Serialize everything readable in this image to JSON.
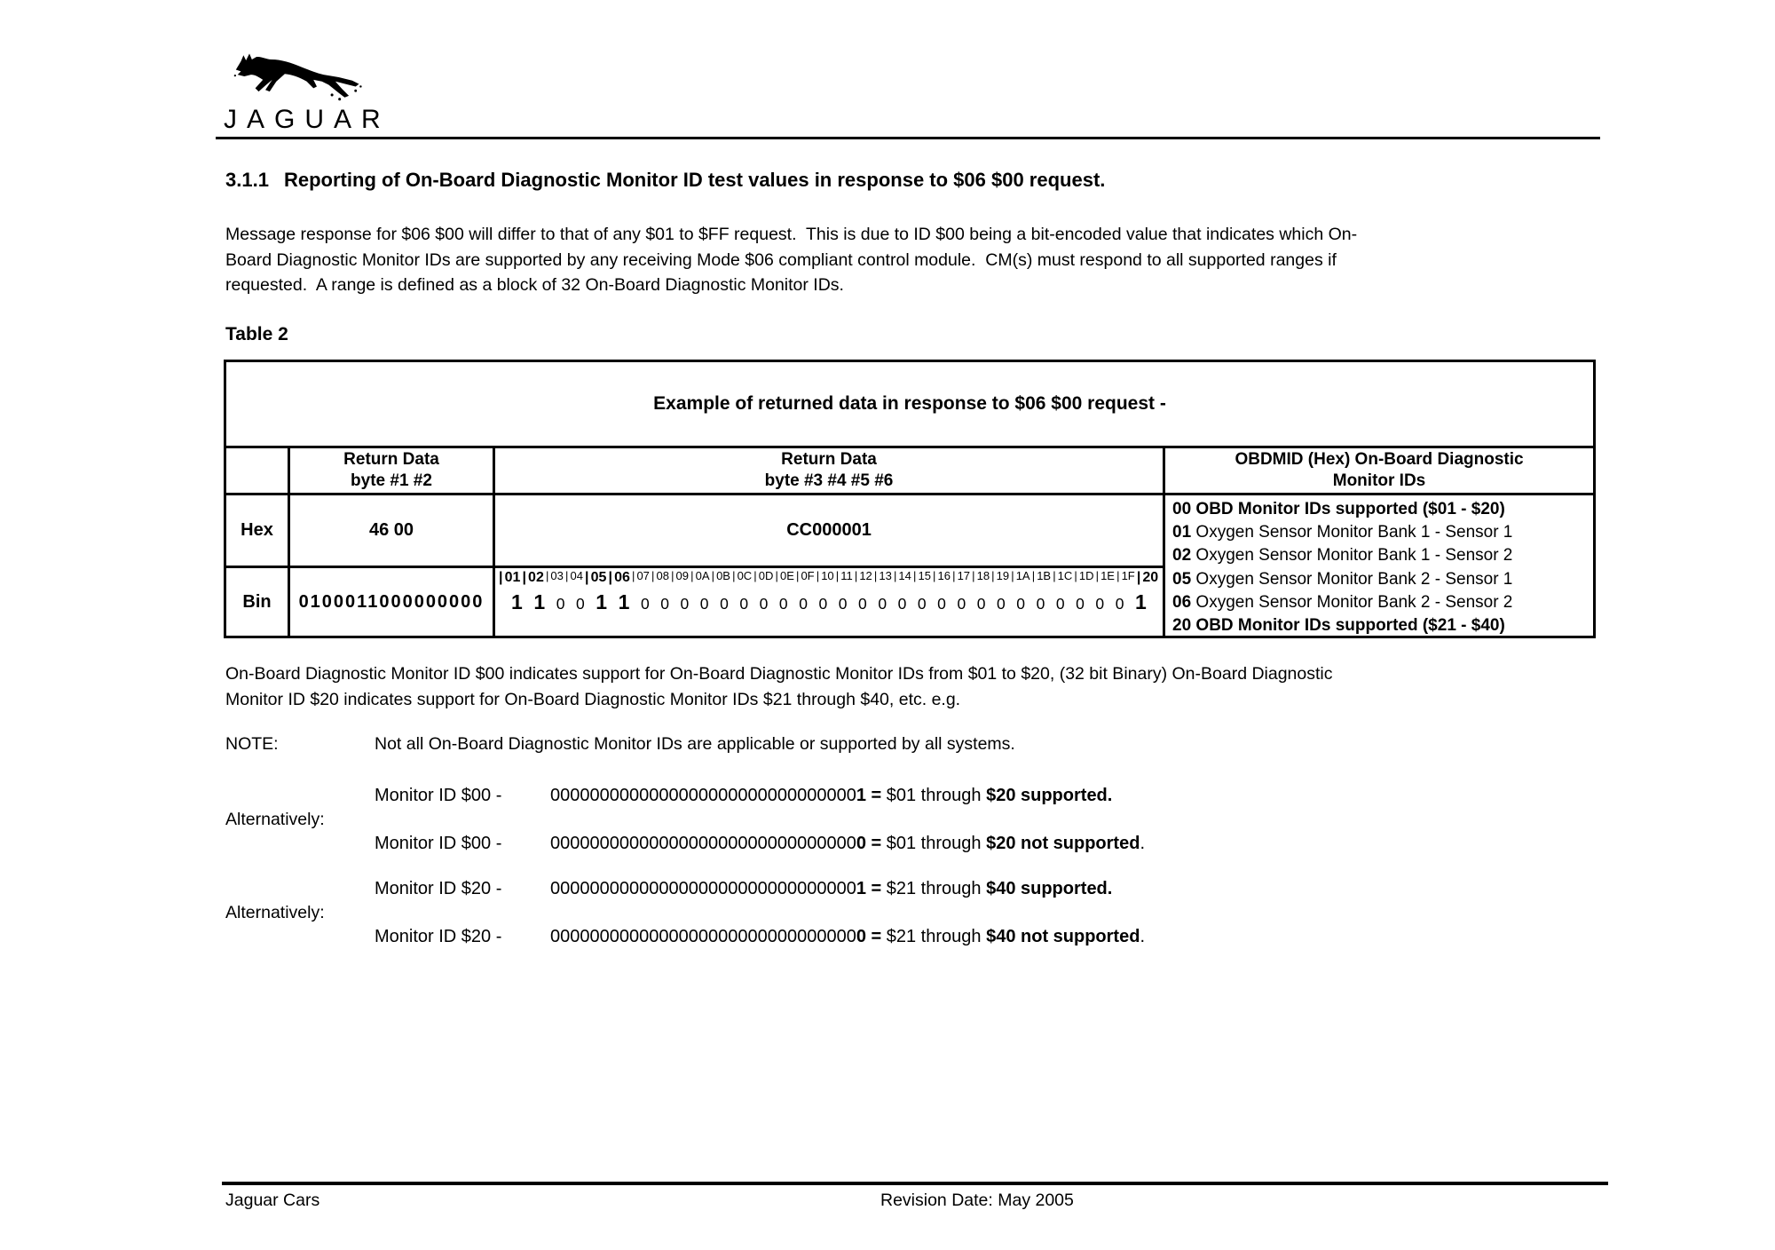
{
  "ink": "#000000",
  "logo": {
    "brand": "JAGUAR"
  },
  "heading": {
    "number": "3.1.1",
    "text": "Reporting of On-Board Diagnostic Monitor ID test values in response to $06 $00 request."
  },
  "intro": "Message response for $06 $00 will differ to that of any $01 to $FF request.  This is due to ID $00 being a bit-encoded value that indicates which On-\nBoard Diagnostic Monitor IDs are supported by any receiving Mode $06 compliant control module.  CM(s) must respond to all supported ranges if\nrequested.  A range is defined as a block of 32 On-Board Diagnostic Monitor IDs.",
  "table_label": "Table 2",
  "table": {
    "title": "Example of returned data in response to $06 $00 request -",
    "col_headers": [
      "",
      "Return Data\nbyte #1 #2",
      "Return Data\nbyte #3 #4 #5 #6",
      "OBDMID (Hex) On-Board Diagnostic\nMonitor IDs"
    ],
    "hex_row": {
      "label": "Hex",
      "byte12": "46 00",
      "byte3456": "CC000001"
    },
    "bin_row": {
      "label": "Bin",
      "byte12": "0100011000000000"
    },
    "bit_positions": [
      "01",
      "02",
      "03",
      "04",
      "05",
      "06",
      "07",
      "08",
      "09",
      "0A",
      "0B",
      "0C",
      "0D",
      "0E",
      "0F",
      "10",
      "11",
      "12",
      "13",
      "14",
      "15",
      "16",
      "17",
      "18",
      "19",
      "1A",
      "1B",
      "1C",
      "1D",
      "1E",
      "1F",
      "20"
    ],
    "bits": [
      1,
      1,
      0,
      0,
      1,
      1,
      0,
      0,
      0,
      0,
      0,
      0,
      0,
      0,
      0,
      0,
      0,
      0,
      0,
      0,
      0,
      0,
      0,
      0,
      0,
      0,
      0,
      0,
      0,
      0,
      0,
      1
    ],
    "obdmid_list": [
      {
        "id": "00",
        "text": "OBD Monitor IDs supported ($01 - $20)",
        "bold": true
      },
      {
        "id": "01",
        "text": "Oxygen Sensor Monitor Bank 1 - Sensor 1",
        "bold": false
      },
      {
        "id": "02",
        "text": "Oxygen Sensor Monitor Bank 1 - Sensor 2",
        "bold": false
      },
      {
        "id": "05",
        "text": "Oxygen Sensor Monitor Bank 2 - Sensor 1",
        "bold": false
      },
      {
        "id": "06",
        "text": "Oxygen Sensor Monitor Bank 2 - Sensor 2",
        "bold": false
      },
      {
        "id": "20",
        "text": "OBD Monitor IDs supported ($21 - $40)",
        "bold": true
      }
    ]
  },
  "after_table": "On-Board Diagnostic Monitor ID $00 indicates support for On-Board Diagnostic Monitor IDs from $01 to $20, (32 bit Binary) On-Board Diagnostic\nMonitor ID $20 indicates support for On-Board Diagnostic Monitor IDs $21 through $40, etc. e.g.",
  "note": {
    "label": "NOTE:",
    "text": "Not all On-Board Diagnostic Monitor IDs are applicable or supported by all systems."
  },
  "alternatively_label": "Alternatively:",
  "monitor_lines": [
    {
      "prefix": "Monitor ID $00 - ",
      "zeros": "0000000000000000000000000000000",
      "bit": "1",
      "eq": "=",
      "mid": " $01 through ",
      "bold": "$20 supported.",
      "tail": ""
    },
    {
      "prefix": "Monitor ID $00 - ",
      "zeros": "0000000000000000000000000000000",
      "bit": "0",
      "eq": "=",
      "mid": " $01 through ",
      "bold": "$20 not supported",
      "tail": "."
    },
    {
      "prefix": "Monitor ID $20 - ",
      "zeros": "0000000000000000000000000000000",
      "bit": "1",
      "eq": "=",
      "mid": " $21 through ",
      "bold": "$40 supported.",
      "tail": ""
    },
    {
      "prefix": "Monitor ID $20 - ",
      "zeros": "0000000000000000000000000000000",
      "bit": "0",
      "eq": "=",
      "mid": " $21 through ",
      "bold": "$40 not supported",
      "tail": "."
    }
  ],
  "footer": {
    "left": "Jaguar Cars",
    "center": "Revision Date: May 2005"
  }
}
